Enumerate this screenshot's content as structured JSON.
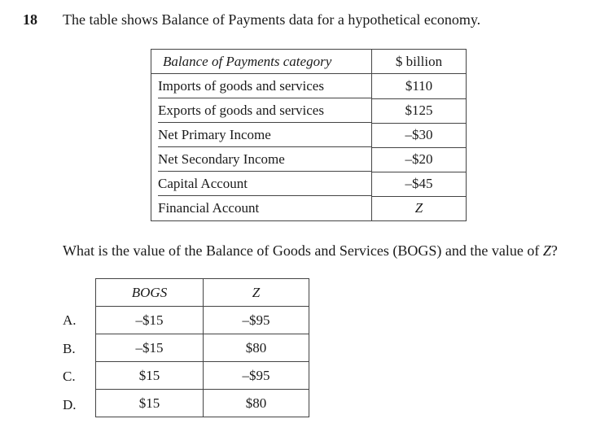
{
  "question": {
    "number": "18",
    "stem": "The table shows Balance of Payments data for a hypothetical economy.",
    "prompt_before_z": "What is the value of the Balance of Goods and Services (BOGS) and the value of ",
    "prompt_z": "Z",
    "prompt_after_z": "?"
  },
  "bop_table": {
    "headers": [
      "Balance of Payments category",
      "$ billion"
    ],
    "rows": [
      {
        "category": "Imports of goods and services",
        "value": "$110"
      },
      {
        "category": "Exports of goods and services",
        "value": "$125"
      },
      {
        "category": "Net Primary Income",
        "value": "–$30"
      },
      {
        "category": "Net Secondary Income",
        "value": "–$20"
      },
      {
        "category": "Capital Account",
        "value": "–$45"
      },
      {
        "category": "Financial Account",
        "value": "Z"
      }
    ]
  },
  "answer_table": {
    "headers": [
      "BOGS",
      "Z"
    ],
    "options": [
      {
        "letter": "A.",
        "bogs": "–$15",
        "z": "–$95"
      },
      {
        "letter": "B.",
        "bogs": "–$15",
        "z": "$80"
      },
      {
        "letter": "C.",
        "bogs": "$15",
        "z": "–$95"
      },
      {
        "letter": "D.",
        "bogs": "$15",
        "z": "$80"
      }
    ]
  }
}
